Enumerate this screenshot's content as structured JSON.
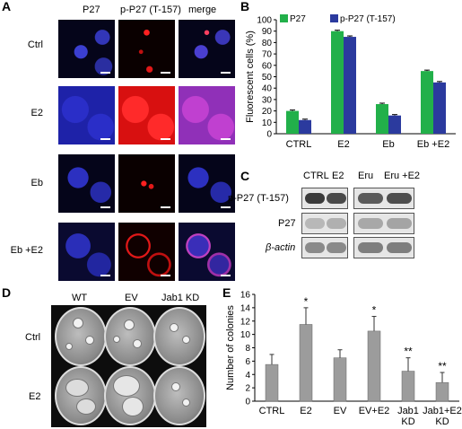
{
  "panelA": {
    "label": "A",
    "columns": [
      "P27",
      "p-P27 (T-157)",
      "merge"
    ],
    "rows": [
      "Ctrl",
      "E2",
      "Eb",
      "Eb +E2"
    ]
  },
  "panelB": {
    "label": "B"
  },
  "panelC": {
    "label": "C",
    "lanes_left": [
      "CTRL",
      "E2"
    ],
    "lanes_right": [
      "Eru",
      "Eru +E2"
    ],
    "rows": [
      "p-P27 (T-157)",
      "P27",
      "β-actin"
    ]
  },
  "panelD": {
    "label": "D",
    "columns": [
      "WT",
      "EV",
      "Jab1 KD"
    ],
    "rows": [
      "Ctrl",
      "E2"
    ]
  },
  "panelE": {
    "label": "E"
  },
  "colors": {
    "green": "#22b04a",
    "blue": "#2b3a9e",
    "gray": "#9c9c9c"
  },
  "chart_data": [
    {
      "id": "B",
      "type": "bar",
      "categories": [
        "CTRL",
        "E2",
        "Eb",
        "Eb +E2"
      ],
      "series": [
        {
          "name": "P27",
          "values": [
            20,
            90,
            26,
            55
          ],
          "errors": [
            0.8,
            0.8,
            0.8,
            0.8
          ]
        },
        {
          "name": "p-P27 (T-157)",
          "values": [
            12,
            85,
            16,
            45
          ],
          "errors": [
            0.8,
            0.8,
            0.8,
            0.8
          ]
        }
      ],
      "ylabel": "Fluorescent cells (%)",
      "ylim": [
        0,
        100
      ],
      "yticks": [
        0,
        10,
        20,
        30,
        40,
        50,
        60,
        70,
        80,
        90,
        100
      ],
      "legend": "top-left"
    },
    {
      "id": "E",
      "type": "bar",
      "categories": [
        "CTRL",
        "E2",
        "EV",
        "EV+E2",
        "Jab1 KD",
        "Jab1+E2 KD"
      ],
      "values": [
        5.5,
        11.5,
        6.5,
        10.5,
        4.5,
        2.8
      ],
      "errors": [
        1.5,
        2.5,
        1.2,
        2.2,
        2.0,
        1.5
      ],
      "annotations": [
        "",
        "*",
        "",
        "*",
        "**",
        "**"
      ],
      "ylabel": "Number of colonies",
      "ylim": [
        0,
        16
      ],
      "yticks": [
        0,
        2,
        4,
        6,
        8,
        10,
        12,
        14,
        16
      ]
    }
  ]
}
